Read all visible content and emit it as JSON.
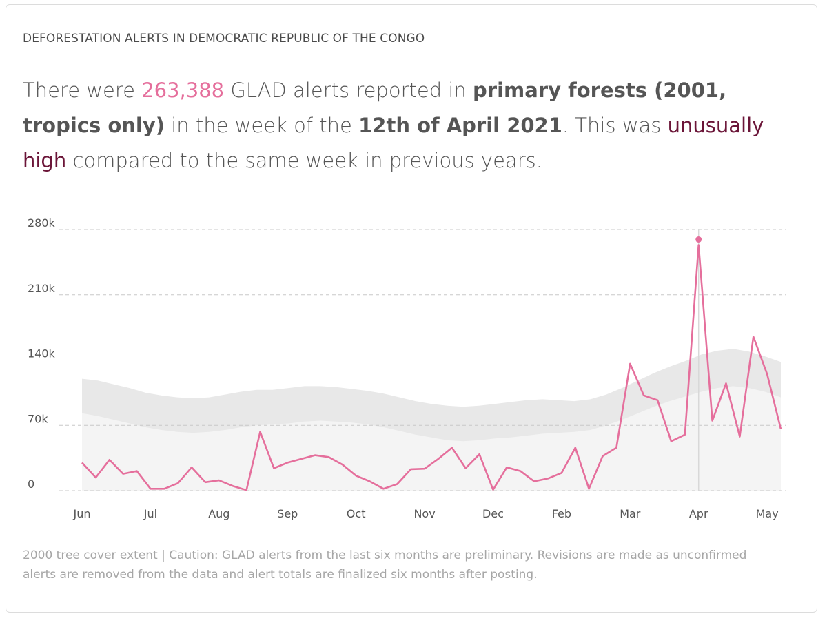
{
  "widget": {
    "heading": "DEFORESTATION ALERTS IN DEMOCRATIC REPUBLIC OF THE CONGO",
    "sentence": {
      "p1": "There were ",
      "count": "263,388",
      "p2": " GLAD alerts reported in ",
      "forest": "primary forests (2001, tropics only)",
      "p3": " in the week of the ",
      "date": "12th of April 2021",
      "p4": ". This was ",
      "status": "unusually high",
      "p5": " compared to the same week in previous years."
    },
    "footnote": "2000 tree cover extent | Caution: GLAD alerts from the last six months are preliminary. Revisions are made as unconfirmed alerts are removed from the data and alert totals are finalized six months after posting."
  },
  "colors": {
    "line": "#e56f9c",
    "highlight": "#6b1538",
    "outer_band": "#e8e8e8",
    "inner_band": "#f4f4f4",
    "grid": "#c8c8c8"
  },
  "chart_data": {
    "type": "line",
    "title": "",
    "xlabel": "",
    "ylabel": "",
    "ylim": [
      0,
      280000
    ],
    "yticks": [
      0,
      70000,
      140000,
      210000,
      280000
    ],
    "ytick_labels": [
      "0",
      "70k",
      "140k",
      "210k",
      "280k"
    ],
    "month_labels": [
      "Jun",
      "Jul",
      "Aug",
      "Sep",
      "Oct",
      "Nov",
      "Dec",
      "Feb",
      "Mar",
      "Apr",
      "May"
    ],
    "grid": true,
    "legend": "none",
    "x_unit": "weeks from start of Jun 2020",
    "month_positions": [
      0,
      5,
      10,
      15,
      20,
      25,
      30,
      35,
      40,
      45,
      50
    ],
    "series": [
      {
        "values": [
          30000,
          14000,
          33000,
          18000,
          21000,
          2000,
          2000,
          8000,
          25000,
          9000,
          11000,
          5000,
          500,
          63000,
          24000,
          30000,
          34000,
          38000,
          36000,
          28000,
          16000,
          10000,
          2000,
          7000,
          23000,
          23500,
          34000,
          46000,
          24000,
          39000,
          1000,
          25000,
          21000,
          10000,
          13000,
          19000,
          46000,
          2000,
          37000,
          46000,
          136000,
          102000,
          97000,
          53000,
          60000,
          263388,
          75000,
          115000,
          58000,
          165000,
          125000,
          66000
        ]
      }
    ],
    "highlight": {
      "week_index": 45,
      "value": 263388,
      "label": "12th of April 2021"
    },
    "bands": {
      "outer_upper": [
        120000,
        118000,
        114000,
        110000,
        105000,
        102000,
        100000,
        99000,
        100000,
        103000,
        106000,
        108000,
        108000,
        110000,
        112000,
        112000,
        111000,
        109000,
        107000,
        104000,
        100000,
        96000,
        93000,
        91000,
        90000,
        91000,
        93000,
        95000,
        97000,
        98000,
        97000,
        96000,
        98000,
        103000,
        110000,
        118000,
        126000,
        133000,
        139000,
        146000,
        150000,
        152000,
        149000,
        144000,
        138000
      ],
      "outer_lower": [
        8000,
        6000,
        2000,
        0,
        0,
        0,
        0,
        0,
        0,
        0,
        0,
        0,
        0,
        0,
        0,
        0,
        0,
        0,
        0,
        0,
        0,
        0,
        0,
        0,
        0,
        0,
        0,
        0,
        0,
        0,
        0,
        0,
        0,
        0,
        2000,
        8000,
        15000,
        21000,
        26000,
        30000,
        34000,
        36000,
        33000,
        29000,
        24000
      ],
      "inner_upper": [
        83000,
        80000,
        76000,
        72000,
        68000,
        65000,
        63000,
        62000,
        63000,
        65000,
        68000,
        70000,
        71000,
        72000,
        74000,
        75000,
        74000,
        73000,
        71000,
        68000,
        64000,
        60000,
        57000,
        54000,
        53000,
        54000,
        56000,
        57000,
        59000,
        61000,
        62000,
        63000,
        65000,
        70000,
        76000,
        83000,
        90000,
        96000,
        101000,
        106000,
        110000,
        112000,
        110000,
        106000,
        100000
      ],
      "inner_lower": [
        0,
        0,
        0,
        0,
        0,
        0,
        0,
        0,
        0,
        0,
        0,
        0,
        0,
        0,
        0,
        0,
        0,
        0,
        0,
        0,
        0,
        0,
        0,
        0,
        0,
        0,
        0,
        0,
        0,
        0,
        0,
        0,
        0,
        0,
        0,
        0,
        0,
        0,
        0,
        0,
        0,
        0,
        0,
        0,
        0
      ]
    }
  }
}
